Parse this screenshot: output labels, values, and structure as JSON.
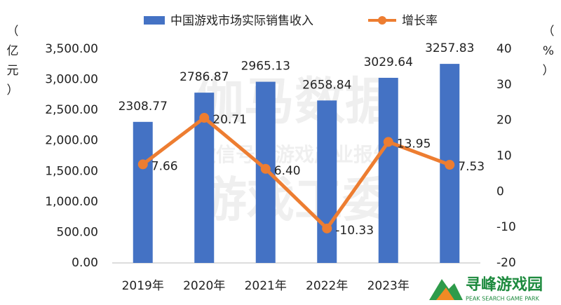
{
  "chart_data": {
    "type": "bar-line",
    "legend": "top",
    "categories": [
      "2019年",
      "2020年",
      "2021年",
      "2022年",
      "2023年",
      null
    ],
    "series": [
      {
        "name": "中国游戏市场实际销售收入",
        "color": "#4472c4",
        "type": "bar",
        "values": [
          2308.77,
          2786.87,
          2965.13,
          2658.84,
          3029.64,
          3257.83
        ]
      },
      {
        "name": "增长率",
        "color": "#ed7d31",
        "type": "line",
        "axis": "y2",
        "values": [
          7.66,
          20.71,
          6.4,
          -10.33,
          13.95,
          7.53
        ],
        "value_labels": [
          "7.66",
          "20.71",
          "6.40",
          "-10.33",
          "13.95",
          "7.53"
        ]
      }
    ],
    "ylabel": "（亿元）",
    "y2label": "（%）",
    "ylim": [
      0,
      3500
    ],
    "yticks": [
      {
        "value": 0,
        "label": "0.00"
      },
      {
        "value": 500,
        "label": "500.00"
      },
      {
        "value": 1000,
        "label": "1,000.00"
      },
      {
        "value": 1500,
        "label": "1,500.00"
      },
      {
        "value": 2000,
        "label": "2,000.00"
      },
      {
        "value": 2500,
        "label": "2,500.00"
      },
      {
        "value": 3000,
        "label": "3,000.00"
      },
      {
        "value": 3500,
        "label": "3,500.00"
      }
    ],
    "y2lim": [
      -20,
      40
    ],
    "y2ticks": [
      -20,
      -10,
      0,
      10,
      20,
      30,
      40
    ],
    "watermark": [
      "伽马数据",
      "微信号：游戏产业报告",
      "游戏工委"
    ],
    "logo": {
      "name": "寻峰游戏园",
      "subtitle": "PEAK SEARCH GAME PARK"
    }
  }
}
